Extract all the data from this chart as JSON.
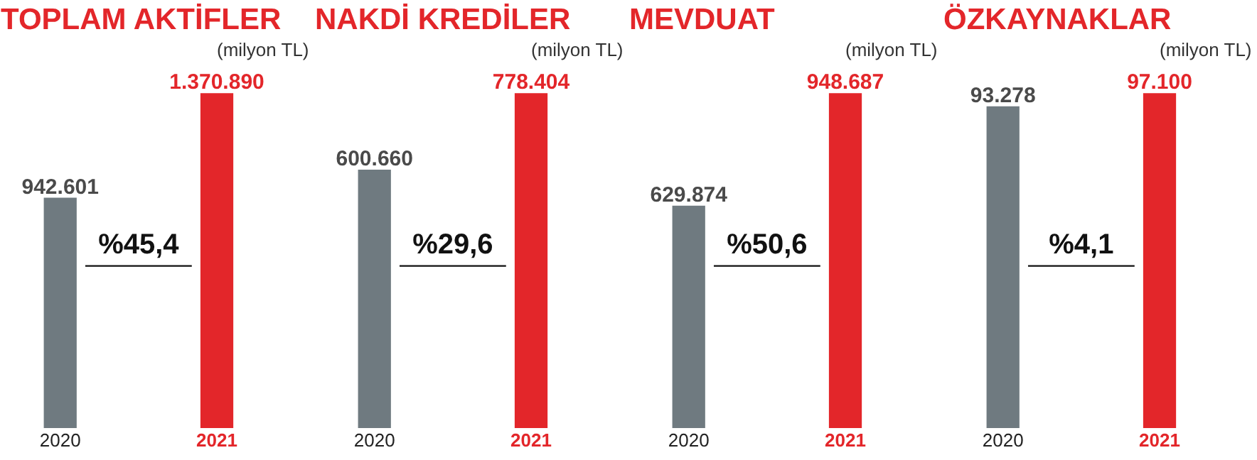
{
  "chart_data": [
    {
      "type": "bar",
      "title": "TOPLAM AKTİFLER",
      "subtitle": "(milyon TL)",
      "categories": [
        "2020",
        "2021"
      ],
      "values": [
        942601,
        1370890
      ],
      "colors": [
        "#6f7a80",
        "#e3262a"
      ],
      "value_labels": [
        "942.601",
        "1.370.890"
      ],
      "annotations": [
        "%45,4"
      ]
    },
    {
      "type": "bar",
      "title": "NAKDİ KREDİLER",
      "subtitle": "(milyon TL)",
      "categories": [
        "2020",
        "2021"
      ],
      "values": [
        600660,
        778404
      ],
      "colors": [
        "#6f7a80",
        "#e3262a"
      ],
      "value_labels": [
        "600.660",
        "778.404"
      ],
      "annotations": [
        "%29,6"
      ]
    },
    {
      "type": "bar",
      "title": "MEVDUAT",
      "subtitle": "(milyon TL)",
      "categories": [
        "2020",
        "2021"
      ],
      "values": [
        629874,
        948687
      ],
      "colors": [
        "#6f7a80",
        "#e3262a"
      ],
      "value_labels": [
        "629.874",
        "948.687"
      ],
      "annotations": [
        "%50,6"
      ]
    },
    {
      "type": "bar",
      "title": "ÖZKAYNAKLAR",
      "subtitle": "(milyon TL)",
      "categories": [
        "2020",
        "2021"
      ],
      "values": [
        93278,
        97100
      ],
      "colors": [
        "#6f7a80",
        "#e3262a"
      ],
      "value_labels": [
        "93.278",
        "97.100"
      ],
      "annotations": [
        "%4,1"
      ]
    }
  ]
}
